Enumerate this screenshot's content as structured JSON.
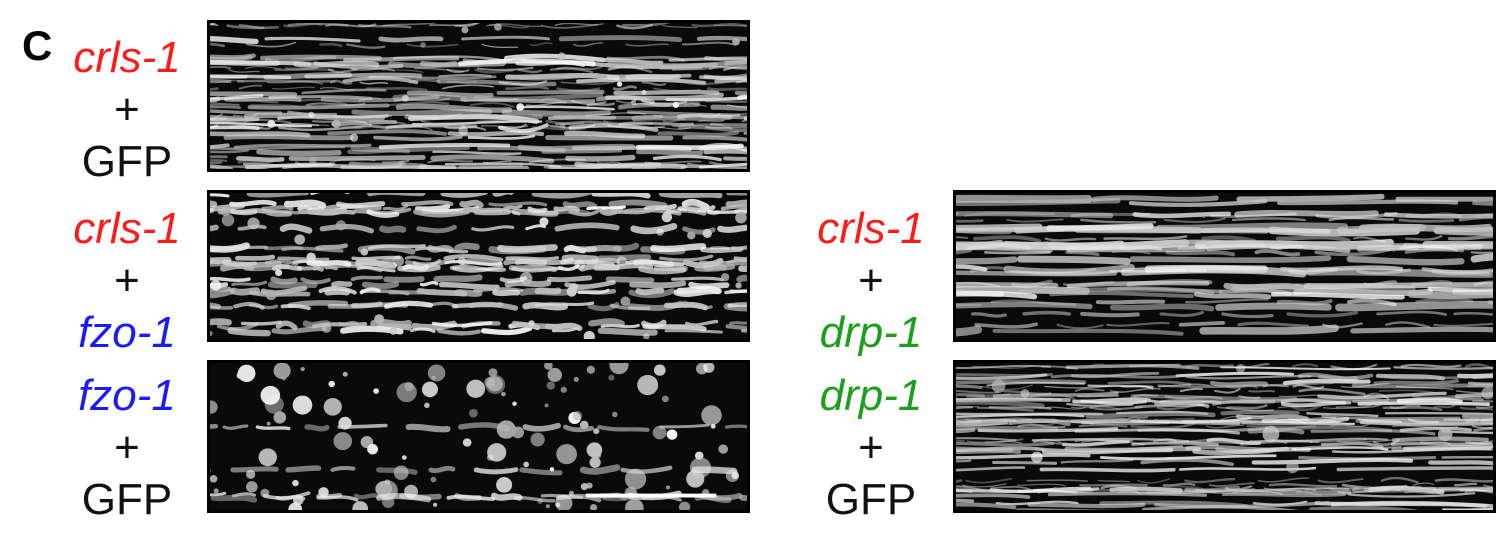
{
  "figure": {
    "panel_letter": "C",
    "colors": {
      "crls": "#ff1a1a",
      "fzo": "#1a1aff",
      "drp": "#1aa01a",
      "plain": "#111111"
    },
    "panels": [
      {
        "id": "crls-gfp",
        "line1": "crls-1",
        "line2": "+",
        "line3": "GFP",
        "c1": "crls",
        "c3": "plain",
        "morphology": "tubular-network"
      },
      {
        "id": "crls-fzo",
        "line1": "crls-1",
        "line2": "+",
        "line3": "fzo-1",
        "c1": "crls",
        "c3": "fzo",
        "morphology": "short-fragments"
      },
      {
        "id": "fzo-gfp",
        "line1": "fzo-1",
        "line2": "+",
        "line3": "GFP",
        "c1": "fzo",
        "c3": "plain",
        "morphology": "round-puncta"
      },
      {
        "id": "crls-drp",
        "line1": "crls-1",
        "line2": "+",
        "line3": "drp-1",
        "c1": "crls",
        "c3": "drp",
        "morphology": "elongated-tubules"
      },
      {
        "id": "drp-gfp",
        "line1": "drp-1",
        "line2": "+",
        "line3": "GFP",
        "c1": "drp",
        "c3": "plain",
        "morphology": "hyperfused-network"
      }
    ]
  }
}
